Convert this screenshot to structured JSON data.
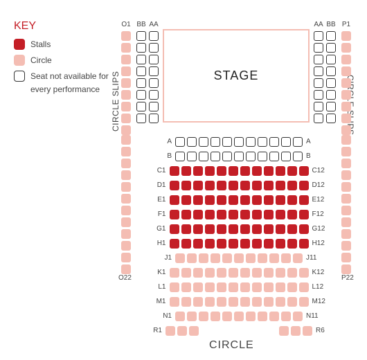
{
  "key": {
    "title": "KEY",
    "stalls": "Stalls",
    "circle": "Circle",
    "na": "Seat not available for every performance"
  },
  "stage_label": "STAGE",
  "slips_label": "CIRCLE SLIPS",
  "circle_title": "CIRCLE",
  "colors": {
    "stalls": "#c41e26",
    "circle": "#f4bdb3",
    "na_border": "#333333",
    "background": "#ffffff",
    "text": "#444444"
  },
  "top_cols": {
    "left": [
      {
        "label": "O1",
        "n": 9,
        "type": "circle"
      },
      {
        "label": "BB",
        "n": 8,
        "type": "na"
      },
      {
        "label": "AA",
        "n": 8,
        "type": "na"
      }
    ],
    "right": [
      {
        "label": "AA",
        "n": 8,
        "type": "na"
      },
      {
        "label": "BB",
        "n": 8,
        "type": "na"
      },
      {
        "label": "P1",
        "n": 9,
        "type": "circle"
      }
    ]
  },
  "slips": {
    "left_o_below": 12,
    "right_p_below": 12,
    "o_end_label": "O22",
    "p_end_label": "P22"
  },
  "rows": [
    {
      "l": "A",
      "r": "A",
      "n": 11,
      "type": "na"
    },
    {
      "l": "B",
      "r": "B",
      "n": 11,
      "type": "na"
    },
    {
      "l": "C1",
      "r": "C12",
      "n": 12,
      "type": "stalls"
    },
    {
      "l": "D1",
      "r": "D12",
      "n": 12,
      "type": "stalls"
    },
    {
      "l": "E1",
      "r": "E12",
      "n": 12,
      "type": "stalls"
    },
    {
      "l": "F1",
      "r": "F12",
      "n": 12,
      "type": "stalls"
    },
    {
      "l": "G1",
      "r": "G12",
      "n": 12,
      "type": "stalls"
    },
    {
      "l": "H1",
      "r": "H12",
      "n": 12,
      "type": "stalls"
    },
    {
      "l": "J1",
      "r": "J11",
      "n": 11,
      "type": "circle"
    },
    {
      "l": "K1",
      "r": "K12",
      "n": 12,
      "type": "circle"
    },
    {
      "l": "L1",
      "r": "L12",
      "n": 12,
      "type": "circle"
    },
    {
      "l": "M1",
      "r": "M12",
      "n": 12,
      "type": "circle"
    },
    {
      "l": "N1",
      "r": "N11",
      "n": 11,
      "type": "circle"
    },
    {
      "l": "R1",
      "r": "R6",
      "n": 6,
      "type": "circle",
      "split": true
    }
  ]
}
